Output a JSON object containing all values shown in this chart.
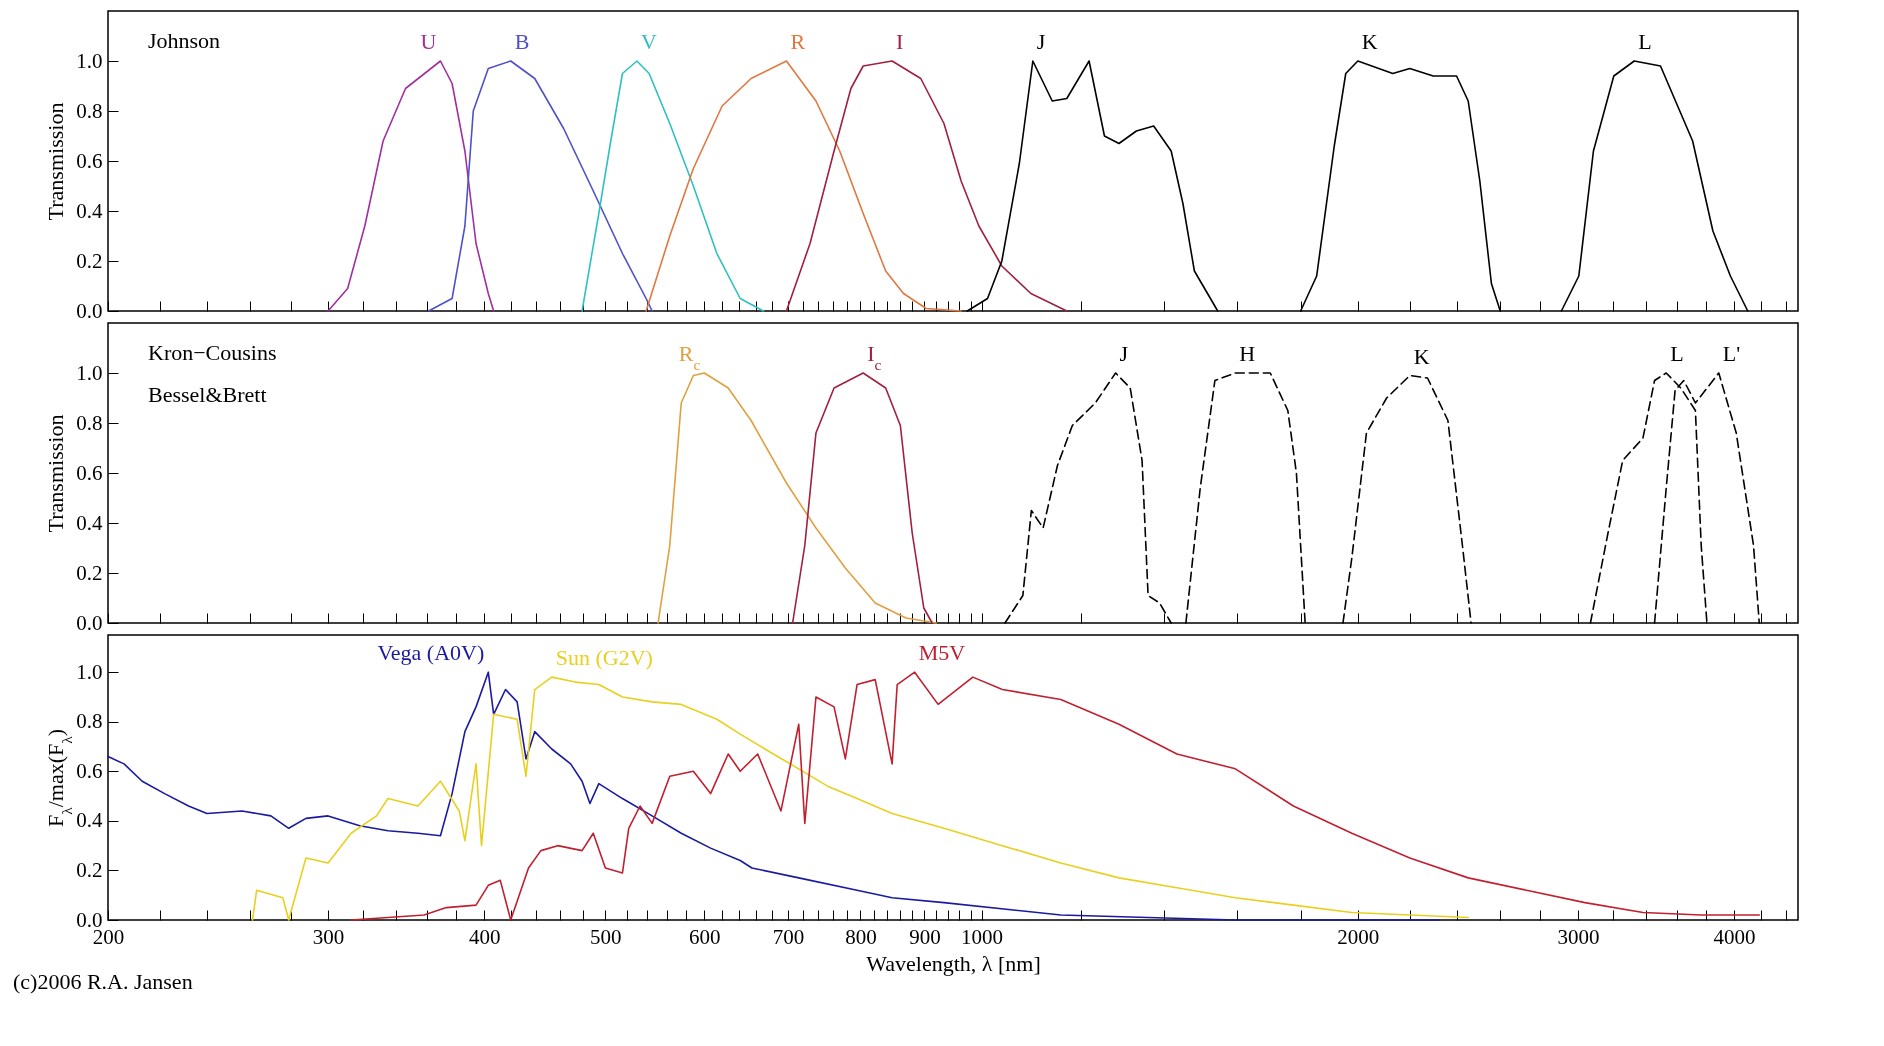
{
  "chart_data": [
    {
      "type": "line",
      "ylabel": "Transmission",
      "log": "x",
      "line_style": "solid",
      "tick_labels": "y",
      "annotations": [
        "Johnson"
      ],
      "xlim": [
        200,
        4500
      ],
      "xticks": [
        200,
        {
          "value": 220,
          "label": null
        },
        {
          "value": 240,
          "label": null
        },
        {
          "value": 260,
          "label": null
        },
        {
          "value": 280,
          "label": null
        },
        300,
        {
          "value": 320,
          "label": null
        },
        {
          "value": 340,
          "label": null
        },
        {
          "value": 360,
          "label": null
        },
        {
          "value": 380,
          "label": null
        },
        400,
        {
          "value": 420,
          "label": null
        },
        {
          "value": 440,
          "label": null
        },
        {
          "value": 460,
          "label": null
        },
        {
          "value": 480,
          "label": null
        },
        500,
        {
          "value": 520,
          "label": null
        },
        {
          "value": 540,
          "label": null
        },
        {
          "value": 560,
          "label": null
        },
        {
          "value": 580,
          "label": null
        },
        600,
        {
          "value": 620,
          "label": null
        },
        {
          "value": 640,
          "label": null
        },
        {
          "value": 660,
          "label": null
        },
        {
          "value": 680,
          "label": null
        },
        700,
        {
          "value": 720,
          "label": null
        },
        {
          "value": 740,
          "label": null
        },
        {
          "value": 760,
          "label": null
        },
        {
          "value": 780,
          "label": null
        },
        800,
        {
          "value": 820,
          "label": null
        },
        {
          "value": 840,
          "label": null
        },
        {
          "value": 860,
          "label": null
        },
        {
          "value": 880,
          "label": null
        },
        900,
        {
          "value": 920,
          "label": null
        },
        {
          "value": 940,
          "label": null
        },
        {
          "value": 960,
          "label": null
        },
        {
          "value": 980,
          "label": null
        },
        1000,
        {
          "value": 1200,
          "label": null
        },
        {
          "value": 1400,
          "label": null
        },
        {
          "value": 1600,
          "label": null
        },
        {
          "value": 1800,
          "label": null
        },
        2000,
        {
          "value": 2200,
          "label": null
        },
        {
          "value": 2400,
          "label": null
        },
        {
          "value": 2600,
          "label": null
        },
        {
          "value": 2800,
          "label": null
        },
        3000,
        {
          "value": 3200,
          "label": null
        },
        {
          "value": 3400,
          "label": null
        },
        {
          "value": 3600,
          "label": null
        },
        {
          "value": 3800,
          "label": null
        },
        4000,
        {
          "value": 4200,
          "label": null
        },
        {
          "value": 4400,
          "label": null
        }
      ],
      "ylim": [
        0,
        1.2
      ],
      "yticks": [
        {
          "value": 0,
          "label": "0.0"
        },
        {
          "value": 0.2,
          "label": "0.2"
        },
        {
          "value": 0.4,
          "label": "0.4"
        },
        {
          "value": 0.6,
          "label": "0.6"
        },
        {
          "value": 0.8,
          "label": "0.8"
        },
        {
          "value": 1,
          "label": "1.0"
        }
      ],
      "series": [
        {
          "name": "U",
          "color": "#a030a0",
          "x": [
            300,
            311,
            321,
            332,
            346,
            369,
            377,
            386,
            394,
            403,
            407
          ],
          "values": [
            0,
            0.09,
            0.34,
            0.68,
            0.89,
            1.0,
            0.91,
            0.64,
            0.27,
            0.07,
            0
          ]
        },
        {
          "name": "B",
          "color": "#5050c8",
          "x": [
            361,
            377,
            386,
            392,
            403,
            420,
            439,
            463,
            489,
            516,
            539,
            545
          ],
          "values": [
            0,
            0.05,
            0.34,
            0.8,
            0.97,
            1.0,
            0.93,
            0.73,
            0.48,
            0.23,
            0.05,
            0
          ]
        },
        {
          "name": "V",
          "color": "#30c0c0",
          "x": [
            479,
            494,
            505,
            516,
            530,
            542,
            563,
            588,
            614,
            641,
            669
          ],
          "values": [
            0,
            0.39,
            0.68,
            0.95,
            1.0,
            0.95,
            0.75,
            0.5,
            0.23,
            0.05,
            0
          ]
        },
        {
          "name": "R",
          "color": "#e07840",
          "x": [
            539,
            563,
            588,
            620,
            654,
            698,
            737,
            770,
            804,
            838,
            866,
            903,
            963
          ],
          "values": [
            0,
            0.3,
            0.57,
            0.82,
            0.93,
            1.0,
            0.84,
            0.64,
            0.39,
            0.16,
            0.07,
            0.01,
            0
          ]
        },
        {
          "name": "I",
          "color": "#a02040",
          "x": [
            698,
            729,
            762,
            786,
            804,
            848,
            894,
            933,
            963,
            995,
            1038,
            1095,
            1170
          ],
          "values": [
            0,
            0.27,
            0.64,
            0.89,
            0.98,
            1.0,
            0.93,
            0.75,
            0.52,
            0.34,
            0.18,
            0.07,
            0
          ]
        },
        {
          "name": "J",
          "color": "#000000",
          "x": [
            974,
            1011,
            1038,
            1072,
            1099,
            1139,
            1170,
            1219,
            1254,
            1288,
            1330,
            1373,
            1418,
            1449,
            1480,
            1545
          ],
          "values": [
            0,
            0.05,
            0.2,
            0.59,
            1.0,
            0.84,
            0.85,
            1.0,
            0.7,
            0.67,
            0.72,
            0.74,
            0.64,
            0.43,
            0.16,
            0
          ]
        },
        {
          "name": "K",
          "color": "#000000",
          "x": [
            1800,
            1854,
            1915,
            1956,
            2000,
            2133,
            2201,
            2298,
            2399,
            2451,
            2504,
            2558,
            2600
          ],
          "values": [
            0,
            0.14,
            0.66,
            0.95,
            1.0,
            0.95,
            0.97,
            0.94,
            0.94,
            0.84,
            0.52,
            0.11,
            0
          ]
        },
        {
          "name": "L",
          "color": "#000000",
          "x": [
            2910,
            3005,
            3087,
            3205,
            3328,
            3493,
            3706,
            3847,
            3973,
            4102
          ],
          "values": [
            0,
            0.14,
            0.64,
            0.94,
            1.0,
            0.98,
            0.68,
            0.32,
            0.14,
            0
          ]
        }
      ]
    },
    {
      "type": "line",
      "ylabel": "Transmission",
      "log": "x",
      "line_style": "solid",
      "tick_labels": "y",
      "annotations": [
        "Kron−Cousins",
        "Bessel&Brett"
      ],
      "xlim": [
        200,
        4500
      ],
      "xticks": [
        200,
        {
          "value": 220,
          "label": null
        },
        {
          "value": 240,
          "label": null
        },
        {
          "value": 260,
          "label": null
        },
        {
          "value": 280,
          "label": null
        },
        300,
        {
          "value": 320,
          "label": null
        },
        {
          "value": 340,
          "label": null
        },
        {
          "value": 360,
          "label": null
        },
        {
          "value": 380,
          "label": null
        },
        400,
        {
          "value": 420,
          "label": null
        },
        {
          "value": 440,
          "label": null
        },
        {
          "value": 460,
          "label": null
        },
        {
          "value": 480,
          "label": null
        },
        500,
        {
          "value": 520,
          "label": null
        },
        {
          "value": 540,
          "label": null
        },
        {
          "value": 560,
          "label": null
        },
        {
          "value": 580,
          "label": null
        },
        600,
        {
          "value": 620,
          "label": null
        },
        {
          "value": 640,
          "label": null
        },
        {
          "value": 660,
          "label": null
        },
        {
          "value": 680,
          "label": null
        },
        700,
        {
          "value": 720,
          "label": null
        },
        {
          "value": 740,
          "label": null
        },
        {
          "value": 760,
          "label": null
        },
        {
          "value": 780,
          "label": null
        },
        800,
        {
          "value": 820,
          "label": null
        },
        {
          "value": 840,
          "label": null
        },
        {
          "value": 860,
          "label": null
        },
        {
          "value": 880,
          "label": null
        },
        900,
        {
          "value": 920,
          "label": null
        },
        {
          "value": 940,
          "label": null
        },
        {
          "value": 960,
          "label": null
        },
        {
          "value": 980,
          "label": null
        },
        1000,
        {
          "value": 1200,
          "label": null
        },
        {
          "value": 1400,
          "label": null
        },
        {
          "value": 1600,
          "label": null
        },
        {
          "value": 1800,
          "label": null
        },
        2000,
        {
          "value": 2200,
          "label": null
        },
        {
          "value": 2400,
          "label": null
        },
        {
          "value": 2600,
          "label": null
        },
        {
          "value": 2800,
          "label": null
        },
        3000,
        {
          "value": 3200,
          "label": null
        },
        {
          "value": 3400,
          "label": null
        },
        {
          "value": 3600,
          "label": null
        },
        {
          "value": 3800,
          "label": null
        },
        4000,
        {
          "value": 4200,
          "label": null
        },
        {
          "value": 4400,
          "label": null
        }
      ],
      "ylim": [
        0,
        1.2
      ],
      "yticks": [
        {
          "value": 0,
          "label": "0.0"
        },
        {
          "value": 0.2,
          "label": "0.2"
        },
        {
          "value": 0.4,
          "label": "0.4"
        },
        {
          "value": 0.6,
          "label": "0.6"
        },
        {
          "value": 0.8,
          "label": "0.8"
        },
        {
          "value": 1,
          "label": "1.0"
        }
      ],
      "series": [
        {
          "name": "R$_{c}$",
          "color": "#e0a040",
          "x": [
            551,
            563,
            575,
            588,
            600,
            627,
            654,
            698,
            737,
            778,
            822,
            870,
            920
          ],
          "values": [
            0,
            0.31,
            0.88,
            0.99,
            1.0,
            0.94,
            0.81,
            0.56,
            0.38,
            0.22,
            0.08,
            0.02,
            0
          ]
        },
        {
          "name": "I$_{c}$",
          "color": "#a02040",
          "x": [
            706,
            722,
            737,
            762,
            804,
            838,
            861,
            880,
            899,
            913
          ],
          "values": [
            0,
            0.31,
            0.76,
            0.94,
            1.0,
            0.94,
            0.79,
            0.36,
            0.06,
            0
          ]
        },
        {
          "name": "J",
          "color": "#000000",
          "line_style": "dashed",
          "x": [
            1044,
            1079,
            1096,
            1120,
            1150,
            1182,
            1233,
            1280,
            1315,
            1344,
            1359,
            1388,
            1418
          ],
          "values": [
            0,
            0.11,
            0.45,
            0.38,
            0.63,
            0.79,
            0.88,
            1.0,
            0.94,
            0.65,
            0.11,
            0.08,
            0
          ]
        },
        {
          "name": "H",
          "color": "#000000",
          "line_style": "dashed",
          "x": [
            1457,
            1496,
            1537,
            1596,
            1702,
            1758,
            1786,
            1815
          ],
          "values": [
            0,
            0.54,
            0.97,
            1.0,
            1.0,
            0.85,
            0.6,
            0
          ]
        },
        {
          "name": "K",
          "color": "#000000",
          "line_style": "dashed",
          "x": [
            1946,
            1978,
            2032,
            2109,
            2201,
            2274,
            2361,
            2425,
            2464
          ],
          "values": [
            0,
            0.26,
            0.76,
            0.9,
            0.99,
            0.98,
            0.81,
            0.31,
            0
          ]
        },
        {
          "name": "L",
          "color": "#000000",
          "line_style": "dashed",
          "x": [
            3070,
            3171,
            3258,
            3382,
            3455,
            3530,
            3626,
            3725,
            3765,
            3805
          ],
          "values": [
            0,
            0.36,
            0.65,
            0.74,
            0.97,
            1.0,
            0.94,
            0.85,
            0.31,
            0
          ]
        },
        {
          "name": "L'",
          "color": "#000000",
          "line_style": "dashed",
          "x": [
            3455,
            3530,
            3588,
            3646,
            3725,
            3889,
            4016,
            4146,
            4190
          ],
          "values": [
            0,
            0.54,
            0.93,
            0.97,
            0.88,
            1.0,
            0.76,
            0.31,
            0
          ]
        }
      ]
    },
    {
      "type": "line",
      "ylabel": "F$_{λ}$/max(F$_{λ}$)",
      "xlabel": "Wavelength, λ [nm]",
      "log": "x",
      "line_style": "solid",
      "annotations": [
        "(c)2006 R.A. Jansen"
      ],
      "xlim": [
        200,
        4500
      ],
      "xticks": [
        200,
        {
          "value": 220,
          "label": null
        },
        {
          "value": 240,
          "label": null
        },
        {
          "value": 260,
          "label": null
        },
        {
          "value": 280,
          "label": null
        },
        300,
        {
          "value": 320,
          "label": null
        },
        {
          "value": 340,
          "label": null
        },
        {
          "value": 360,
          "label": null
        },
        {
          "value": 380,
          "label": null
        },
        400,
        {
          "value": 420,
          "label": null
        },
        {
          "value": 440,
          "label": null
        },
        {
          "value": 460,
          "label": null
        },
        {
          "value": 480,
          "label": null
        },
        500,
        {
          "value": 520,
          "label": null
        },
        {
          "value": 540,
          "label": null
        },
        {
          "value": 560,
          "label": null
        },
        {
          "value": 580,
          "label": null
        },
        600,
        {
          "value": 620,
          "label": null
        },
        {
          "value": 640,
          "label": null
        },
        {
          "value": 660,
          "label": null
        },
        {
          "value": 680,
          "label": null
        },
        700,
        {
          "value": 720,
          "label": null
        },
        {
          "value": 740,
          "label": null
        },
        {
          "value": 760,
          "label": null
        },
        {
          "value": 780,
          "label": null
        },
        800,
        {
          "value": 820,
          "label": null
        },
        {
          "value": 840,
          "label": null
        },
        {
          "value": 860,
          "label": null
        },
        {
          "value": 880,
          "label": null
        },
        900,
        {
          "value": 920,
          "label": null
        },
        {
          "value": 940,
          "label": null
        },
        {
          "value": 960,
          "label": null
        },
        {
          "value": 980,
          "label": null
        },
        1000,
        {
          "value": 1200,
          "label": null
        },
        {
          "value": 1400,
          "label": null
        },
        {
          "value": 1600,
          "label": null
        },
        {
          "value": 1800,
          "label": null
        },
        2000,
        {
          "value": 2200,
          "label": null
        },
        {
          "value": 2400,
          "label": null
        },
        {
          "value": 2600,
          "label": null
        },
        {
          "value": 2800,
          "label": null
        },
        3000,
        {
          "value": 3200,
          "label": null
        },
        {
          "value": 3400,
          "label": null
        },
        {
          "value": 3600,
          "label": null
        },
        {
          "value": 3800,
          "label": null
        },
        4000,
        {
          "value": 4200,
          "label": null
        },
        {
          "value": 4400,
          "label": null
        }
      ],
      "ylim": [
        0,
        1.15
      ],
      "yticks": [
        {
          "value": 0,
          "label": "0.0"
        },
        {
          "value": 0.2,
          "label": "0.2"
        },
        {
          "value": 0.4,
          "label": "0.4"
        },
        {
          "value": 0.6,
          "label": "0.6"
        },
        {
          "value": 0.8,
          "label": "0.8"
        },
        {
          "value": 1,
          "label": "1.0"
        }
      ],
      "series": [
        {
          "name": "Vega (A0V)",
          "color": "#1a1aa0",
          "x": [
            200,
            206,
            213,
            222,
            232,
            240,
            256,
            270,
            279,
            288,
            300,
            318,
            335,
            354,
            369,
            377,
            386,
            394,
            403,
            407,
            416,
            425,
            432,
            439,
            453,
            469,
            479,
            486,
            494,
            516,
            545,
            575,
            607,
            641,
            655,
            714,
            795,
            848,
            933,
            1157,
            1596,
            1776,
            2323
          ],
          "values": [
            0.66,
            0.63,
            0.56,
            0.51,
            0.46,
            0.43,
            0.44,
            0.42,
            0.37,
            0.41,
            0.42,
            0.38,
            0.36,
            0.35,
            0.34,
            0.51,
            0.76,
            0.86,
            1.0,
            0.83,
            0.93,
            0.88,
            0.65,
            0.76,
            0.69,
            0.63,
            0.56,
            0.47,
            0.55,
            0.49,
            0.42,
            0.35,
            0.29,
            0.24,
            0.21,
            0.17,
            0.12,
            0.09,
            0.07,
            0.02,
            0,
            0,
            0
          ]
        },
        {
          "name": "Sun (G2V)",
          "color": "#e8d020",
          "x": [
            261,
            263,
            276,
            279,
            288,
            300,
            313,
            328,
            335,
            354,
            369,
            382,
            386,
            394,
            398,
            407,
            425,
            432,
            439,
            453,
            473,
            494,
            516,
            545,
            575,
            614,
            641,
            676,
            714,
            753,
            795,
            848,
            933,
            1039,
            1157,
            1288,
            1433,
            1596,
            1776,
            1978,
            2451
          ],
          "values": [
            0,
            0.12,
            0.09,
            0,
            0.25,
            0.23,
            0.35,
            0.42,
            0.49,
            0.46,
            0.56,
            0.44,
            0.32,
            0.63,
            0.3,
            0.83,
            0.81,
            0.58,
            0.93,
            0.98,
            0.96,
            0.95,
            0.9,
            0.88,
            0.87,
            0.81,
            0.75,
            0.68,
            0.61,
            0.54,
            0.49,
            0.43,
            0.37,
            0.3,
            0.23,
            0.17,
            0.13,
            0.09,
            0.06,
            0.03,
            0.01
          ]
        },
        {
          "name": "M5V",
          "color": "#c02030",
          "x": [
            313,
            335,
            358,
            373,
            394,
            403,
            412,
            420,
            434,
            444,
            458,
            479,
            489,
            500,
            516,
            522,
            533,
            545,
            563,
            588,
            607,
            627,
            641,
            662,
            691,
            714,
            722,
            737,
            762,
            778,
            795,
            822,
            848,
            856,
            884,
            923,
            984,
            1039,
            1157,
            1288,
            1433,
            1596,
            1776,
            1978,
            2201,
            2451,
            2729,
            3039,
            3382,
            3765,
            4190
          ],
          "values": [
            0,
            0.01,
            0.02,
            0.05,
            0.06,
            0.14,
            0.16,
            0,
            0.21,
            0.28,
            0.3,
            0.28,
            0.35,
            0.21,
            0.19,
            0.37,
            0.46,
            0.39,
            0.58,
            0.6,
            0.51,
            0.67,
            0.6,
            0.67,
            0.44,
            0.79,
            0.39,
            0.9,
            0.86,
            0.65,
            0.95,
            0.97,
            0.63,
            0.95,
            1.0,
            0.87,
            0.98,
            0.93,
            0.89,
            0.79,
            0.67,
            0.61,
            0.46,
            0.35,
            0.25,
            0.17,
            0.12,
            0.07,
            0.03,
            0.02,
            0.02
          ]
        }
      ]
    }
  ]
}
